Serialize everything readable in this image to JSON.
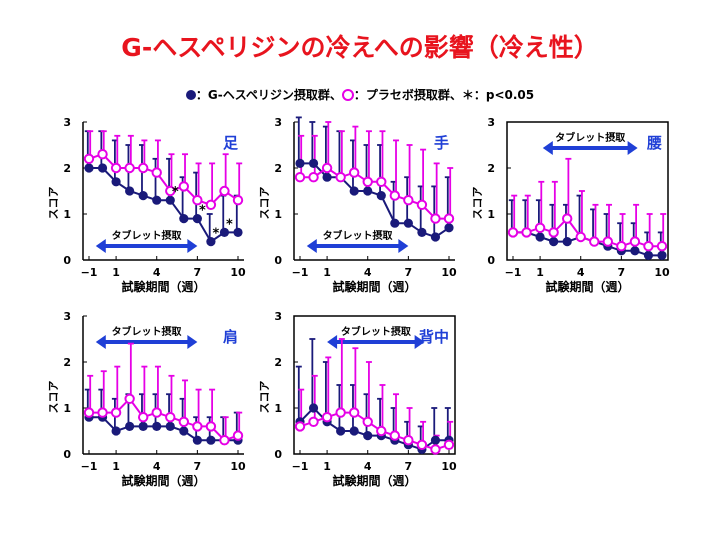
{
  "title": "G-ヘスペリジンの冷えへの影響（冷え性）",
  "legend": {
    "verum": "：G-ヘスペリジン摂取群、",
    "placebo": "：プラセボ摂取群、",
    "significance": "＊：p<0.05"
  },
  "colors": {
    "title": "#e8141e",
    "verum": "#1a1a7a",
    "placebo": "#e600e6",
    "arrow": "#1f3fd6",
    "panel_label": "#1f3fd6"
  },
  "chart_data": [
    {
      "type": "line",
      "panel_label": "足",
      "annotation": "タブレット摂取",
      "xlabel": "試験期間（週）",
      "ylabel": "スコア",
      "x_ticks": [
        "−1",
        "1",
        "4",
        "7",
        "10"
      ],
      "y_ticks": [
        "0",
        "1",
        "2",
        "3"
      ],
      "xlim": [
        -1,
        10
      ],
      "ylim": [
        0,
        3
      ],
      "intake_weeks": [
        -0.5,
        7
      ],
      "x": [
        -1,
        0,
        1,
        2,
        3,
        4,
        5,
        6,
        7,
        8,
        9,
        10
      ],
      "series": [
        {
          "group": "verum",
          "values": [
            2.0,
            2.0,
            1.7,
            1.5,
            1.4,
            1.3,
            1.3,
            0.9,
            0.9,
            0.4,
            0.6,
            0.6
          ],
          "errors": [
            0.8,
            0.8,
            0.9,
            1.0,
            1.1,
            0.9,
            0.9,
            0.9,
            1.0,
            0.6,
            0.8,
            0.8
          ]
        },
        {
          "group": "placebo",
          "values": [
            2.2,
            2.3,
            2.0,
            2.0,
            2.0,
            1.9,
            1.5,
            1.6,
            1.3,
            1.2,
            1.5,
            1.3
          ],
          "errors": [
            0.6,
            0.5,
            0.7,
            0.7,
            0.6,
            0.7,
            0.8,
            0.7,
            0.8,
            0.9,
            0.8,
            0.8
          ]
        }
      ],
      "significant_x": [
        5,
        7,
        8,
        9
      ]
    },
    {
      "type": "line",
      "panel_label": "手",
      "annotation": "タブレット摂取",
      "xlabel": "試験期間（週）",
      "ylabel": "スコア",
      "x_ticks": [
        "−1",
        "1",
        "4",
        "7",
        "10"
      ],
      "y_ticks": [
        "0",
        "1",
        "2",
        "3"
      ],
      "xlim": [
        -1,
        10
      ],
      "ylim": [
        0,
        3
      ],
      "intake_weeks": [
        -0.5,
        7
      ],
      "x": [
        -1,
        0,
        1,
        2,
        3,
        4,
        5,
        6,
        7,
        8,
        9,
        10
      ],
      "series": [
        {
          "group": "verum",
          "values": [
            2.1,
            2.1,
            1.8,
            1.8,
            1.5,
            1.5,
            1.4,
            0.8,
            0.8,
            0.6,
            0.5,
            0.7
          ],
          "errors": [
            1.0,
            0.9,
            1.1,
            1.0,
            1.1,
            1.0,
            1.1,
            0.9,
            1.0,
            1.0,
            1.1,
            1.1
          ]
        },
        {
          "group": "placebo",
          "values": [
            1.8,
            1.8,
            2.0,
            1.8,
            1.9,
            1.7,
            1.7,
            1.4,
            1.3,
            1.2,
            0.9,
            0.9
          ],
          "errors": [
            0.9,
            0.9,
            1.0,
            1.0,
            1.0,
            1.1,
            1.1,
            1.2,
            1.2,
            1.2,
            1.2,
            1.1
          ]
        }
      ],
      "significant_x": []
    },
    {
      "type": "line",
      "panel_label": "腰",
      "annotation": "タブレット摂取",
      "xlabel": "試験期間（週）",
      "ylabel": "スコア",
      "x_ticks": [
        "−1",
        "1",
        "4",
        "7",
        "10"
      ],
      "y_ticks": [
        "0",
        "1",
        "2",
        "3"
      ],
      "xlim": [
        -1,
        10
      ],
      "ylim": [
        0,
        3
      ],
      "intake_weeks": [
        1.2,
        8.2
      ],
      "x": [
        -1,
        0,
        1,
        2,
        3,
        4,
        5,
        6,
        7,
        8,
        9,
        10
      ],
      "series": [
        {
          "group": "verum",
          "values": [
            0.6,
            0.6,
            0.5,
            0.4,
            0.4,
            0.5,
            0.4,
            0.3,
            0.2,
            0.2,
            0.1,
            0.1
          ],
          "errors": [
            0.7,
            0.7,
            0.8,
            0.8,
            0.8,
            0.9,
            0.7,
            0.7,
            0.6,
            0.6,
            0.5,
            0.5
          ]
        },
        {
          "group": "placebo",
          "values": [
            0.6,
            0.6,
            0.7,
            0.6,
            0.9,
            0.5,
            0.4,
            0.4,
            0.3,
            0.4,
            0.3,
            0.3
          ],
          "errors": [
            0.8,
            0.8,
            1.0,
            1.1,
            1.3,
            1.0,
            0.8,
            0.8,
            0.7,
            0.8,
            0.7,
            0.7
          ]
        }
      ],
      "significant_x": []
    },
    {
      "type": "line",
      "panel_label": "肩",
      "annotation": "タブレット摂取",
      "xlabel": "試験期間（週）",
      "ylabel": "スコア",
      "x_ticks": [
        "−1",
        "1",
        "4",
        "7",
        "10"
      ],
      "y_ticks": [
        "0",
        "1",
        "2",
        "3"
      ],
      "xlim": [
        -1,
        10
      ],
      "ylim": [
        0,
        3
      ],
      "intake_weeks": [
        -0.5,
        7
      ],
      "x": [
        -1,
        0,
        1,
        2,
        3,
        4,
        5,
        6,
        7,
        8,
        9,
        10
      ],
      "series": [
        {
          "group": "verum",
          "values": [
            0.8,
            0.8,
            0.5,
            0.6,
            0.6,
            0.6,
            0.6,
            0.5,
            0.3,
            0.3,
            0.3,
            0.3
          ],
          "errors": [
            0.6,
            0.6,
            0.7,
            0.7,
            0.7,
            0.7,
            0.7,
            0.7,
            0.5,
            0.5,
            0.5,
            0.6
          ]
        },
        {
          "group": "placebo",
          "values": [
            0.9,
            0.9,
            0.9,
            1.2,
            0.8,
            0.9,
            0.8,
            0.7,
            0.6,
            0.6,
            0.3,
            0.4
          ],
          "errors": [
            0.8,
            0.9,
            1.0,
            1.2,
            1.1,
            1.0,
            0.9,
            0.9,
            0.8,
            0.8,
            0.5,
            0.5
          ]
        }
      ],
      "significant_x": []
    },
    {
      "type": "line",
      "panel_label": "背中",
      "annotation": "タブレット摂取",
      "xlabel": "試験期間（週）",
      "ylabel": "スコア",
      "x_ticks": [
        "−1",
        "1",
        "4",
        "7",
        "10"
      ],
      "y_ticks": [
        "0",
        "1",
        "2",
        "3"
      ],
      "xlim": [
        -1,
        10
      ],
      "ylim": [
        0,
        3
      ],
      "intake_weeks": [
        1.0,
        8.2
      ],
      "x": [
        -1,
        0,
        1,
        2,
        3,
        4,
        5,
        6,
        7,
        8,
        9,
        10
      ],
      "series": [
        {
          "group": "verum",
          "values": [
            0.7,
            1.0,
            0.7,
            0.5,
            0.5,
            0.4,
            0.4,
            0.3,
            0.2,
            0.1,
            0.3,
            0.3
          ],
          "errors": [
            1.2,
            1.5,
            1.3,
            1.0,
            1.0,
            0.9,
            0.8,
            0.7,
            0.5,
            0.5,
            0.7,
            0.7
          ]
        },
        {
          "group": "placebo",
          "values": [
            0.6,
            0.7,
            0.8,
            0.9,
            0.9,
            0.7,
            0.5,
            0.4,
            0.3,
            0.2,
            0.1,
            0.2
          ],
          "errors": [
            0.8,
            1.0,
            1.3,
            1.6,
            1.4,
            1.3,
            1.0,
            0.9,
            0.7,
            0.5,
            0.3,
            0.5
          ]
        }
      ],
      "significant_x": []
    }
  ]
}
